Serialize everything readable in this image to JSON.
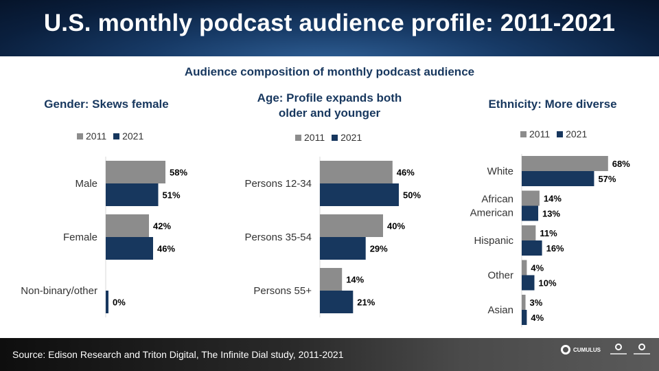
{
  "header": {
    "title": "U.S. monthly podcast audience profile: 2011-2021"
  },
  "subtitle": "Audience composition of monthly podcast audience",
  "colors": {
    "c2011": "#8c8c8c",
    "c2021": "#17375e",
    "navy": "#17375e"
  },
  "footer": {
    "source": "Source: Edison Research and Triton Digital, The Infinite Dial study, 2011-2021",
    "logo": "CUMULUS"
  },
  "panels": [
    {
      "title_line1": "Gender: Skews female",
      "title_line2": "",
      "legend": [
        "2011",
        "2021"
      ]
    },
    {
      "title_line1": "Age: Profile expands both",
      "title_line2": "older and younger",
      "legend": [
        "2011",
        "2021"
      ]
    },
    {
      "title_line1": "Ethnicity: More diverse",
      "title_line2": "",
      "legend": [
        "2011",
        "2021"
      ]
    }
  ],
  "chart_data": [
    {
      "type": "bar",
      "orientation": "horizontal",
      "title": "Gender: Skews female",
      "categories": [
        "Male",
        "Female",
        "Non-binary/other"
      ],
      "series": [
        {
          "name": "2011",
          "values": [
            58,
            42,
            null
          ],
          "labels": [
            "58%",
            "42%",
            ""
          ]
        },
        {
          "name": "2021",
          "values": [
            51,
            46,
            0
          ],
          "labels": [
            "51%",
            "46%",
            "0%"
          ]
        }
      ],
      "xlim": [
        0,
        100
      ],
      "legend": "top"
    },
    {
      "type": "bar",
      "orientation": "horizontal",
      "title": "Age: Profile expands both older and younger",
      "categories": [
        "Persons 12-34",
        "Persons 35-54",
        "Persons 55+"
      ],
      "series": [
        {
          "name": "2011",
          "values": [
            46,
            40,
            14
          ],
          "labels": [
            "46%",
            "40%",
            "14%"
          ]
        },
        {
          "name": "2021",
          "values": [
            50,
            29,
            21
          ],
          "labels": [
            "50%",
            "29%",
            "21%"
          ]
        }
      ],
      "xlim": [
        0,
        100
      ],
      "legend": "top"
    },
    {
      "type": "bar",
      "orientation": "horizontal",
      "title": "Ethnicity: More diverse",
      "categories": [
        "White",
        "African American",
        "Hispanic",
        "Other",
        "Asian"
      ],
      "series": [
        {
          "name": "2011",
          "values": [
            68,
            14,
            11,
            4,
            3
          ],
          "labels": [
            "68%",
            "14%",
            "11%",
            "4%",
            "3%"
          ]
        },
        {
          "name": "2021",
          "values": [
            57,
            13,
            16,
            10,
            4
          ],
          "labels": [
            "57%",
            "13%",
            "16%",
            "10%",
            "4%"
          ]
        }
      ],
      "xlim": [
        0,
        100
      ],
      "legend": "top"
    }
  ]
}
